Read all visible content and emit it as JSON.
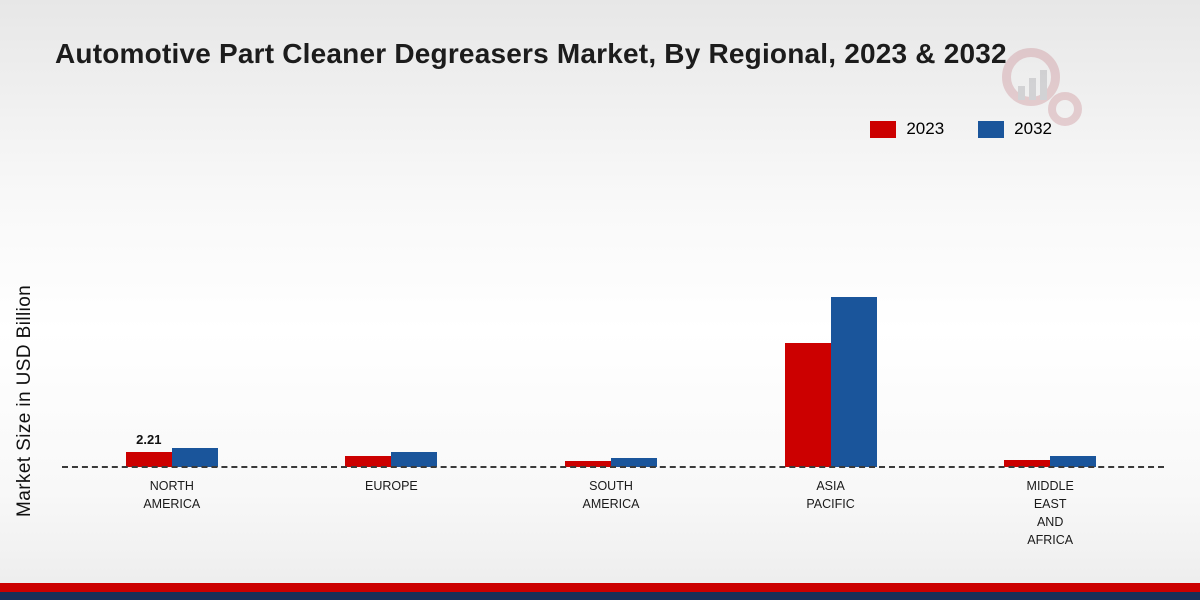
{
  "chart_data": {
    "type": "bar",
    "title": "Automotive Part Cleaner Degreasers Market, By Regional, 2023 & 2032",
    "ylabel": "Market Size in USD Billion",
    "categories": [
      "NORTH AMERICA",
      "EUROPE",
      "SOUTH AMERICA",
      "ASIA PACIFIC",
      "MIDDLE EAST AND AFRICA"
    ],
    "categories_display": [
      "NORTH\nAMERICA",
      "EUROPE",
      "SOUTH\nAMERICA",
      "ASIA\nPACIFIC",
      "MIDDLE\nEAST\nAND\nAFRICA"
    ],
    "series": [
      {
        "name": "2023",
        "color": "#cc0000",
        "values": [
          2.21,
          1.7,
          0.9,
          18.5,
          1.0
        ]
      },
      {
        "name": "2032",
        "color": "#1a559b",
        "values": [
          2.9,
          2.2,
          1.4,
          25.3,
          1.6
        ]
      }
    ],
    "annotations": [
      {
        "text": "2.21",
        "category_index": 0,
        "series_index": 0
      }
    ],
    "ylim": [
      0,
      26
    ],
    "grid": false,
    "baseline_style": "dashed",
    "legend_position": "top-right"
  },
  "footer": {
    "red_strip_color": "#cc0000",
    "navy_strip_color": "#1b2f57"
  },
  "watermark": {
    "name": "market-research-logo"
  }
}
